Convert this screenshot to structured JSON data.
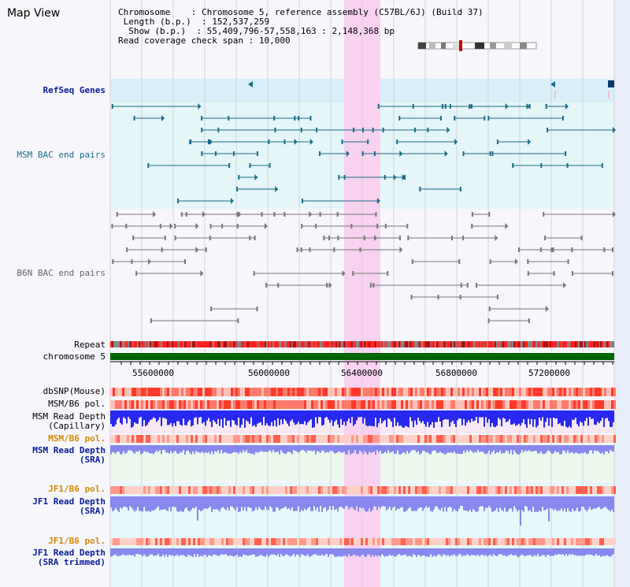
{
  "header": {
    "title": "Map View",
    "chromosome_label": "Chromosome",
    "chromosome_value": "Chromosome 5, reference assembly (C57BL/6J) (Build 37)",
    "length_label": "Length (b.p.)",
    "length_value": "152,537,259",
    "show_label": "Show (b.p.)",
    "show_value": "55,409,796-57,558,163 : 2,148,368 bp",
    "coverage_label": "Read coverage check span",
    "coverage_value": "10,000"
  },
  "tracks": {
    "refseq": "RefSeq Genes",
    "msm_bac": "MSM BAC end pairs",
    "b6n_bac": "B6N BAC end pairs",
    "repeat": "Repeat",
    "chromosome": "chromosome 5",
    "dbsnp": "dbSNP(Mouse)",
    "msm_b6_pol_1": "MSM/B6 pol.",
    "msm_read_depth_cap_1": "MSM Read Depth",
    "msm_read_depth_cap_2": "(Capillary)",
    "msm_b6_pol_2": "MSM/B6 pol.",
    "msm_read_depth_sra_1": "MSM Read Depth",
    "msm_read_depth_sra_2": "(SRA)",
    "jf1_b6_pol_1": "JF1/B6 pol.",
    "jf1_read_depth_sra_1": "JF1 Read Depth",
    "jf1_read_depth_sra_2": "(SRA)",
    "jf1_b6_pol_2": "JF1/B6 pol.",
    "jf1_read_depth_trim_1": "JF1 Read Depth",
    "jf1_read_depth_trim_2": "(SRA trimmed)"
  },
  "axis": {
    "ticks": [
      "55600000",
      "56000000",
      "56400000",
      "56800000",
      "57200000"
    ]
  },
  "colors": {
    "highlight": "#f8d2f0",
    "refseq_bg": "#d8eef8",
    "bac_bg": "#e4f6f8",
    "teal": "#1b6b86",
    "gray": "#777777",
    "chromosome": "#006600",
    "depth_blue": "#2828ee",
    "depth_light": "#8888ee"
  }
}
